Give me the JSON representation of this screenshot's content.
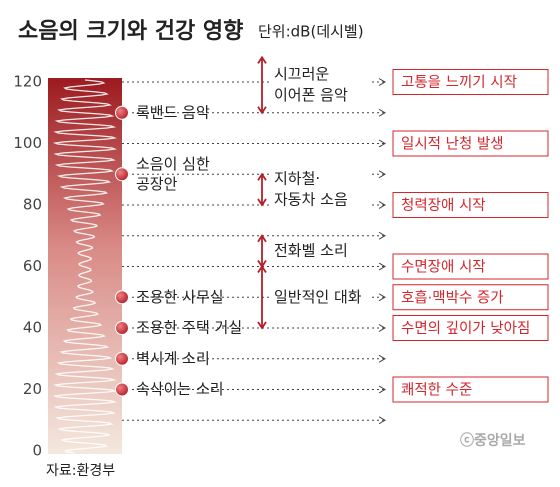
{
  "chart_data": {
    "type": "scale",
    "title": "소음의 크기와 건강 영향",
    "subtitle": "단위:dB(데시벨)",
    "source": "자료:환경부",
    "credit": "ⓒ중앙일보",
    "ylim": [
      0,
      120
    ],
    "yticks": [
      0,
      20,
      40,
      60,
      80,
      100,
      120
    ],
    "minor_yticks": [
      10,
      30,
      50,
      70,
      90,
      110
    ],
    "colors": {
      "top": "#9c1a1f",
      "middle": "#d98a86",
      "bottom": "#f4e8de",
      "dot": "#b3202a",
      "effect": "#d3272c"
    },
    "sources": [
      {
        "lines": [
          "록밴드 음악"
        ],
        "value": 110
      },
      {
        "lines": [
          "소음이 심한",
          "공장안"
        ],
        "value": 90
      },
      {
        "lines": [
          "조용한 사무실"
        ],
        "value": 50
      },
      {
        "lines": [
          "조용한 주택 거실"
        ],
        "value": 40
      },
      {
        "lines": [
          "벽시계 소리"
        ],
        "value": 30
      },
      {
        "lines": [
          "속삭이는 소리"
        ],
        "value": 20
      }
    ],
    "ranges": [
      {
        "lines": [
          "시끄러운",
          "이어폰 음악"
        ],
        "from": 110,
        "to": 128
      },
      {
        "lines": [
          "지하철·",
          "자동차 소음"
        ],
        "from": 80,
        "to": 90
      },
      {
        "lines": [
          "전화벨 소리"
        ],
        "from": 60,
        "to": 70
      },
      {
        "lines": [
          "일반적인 대화"
        ],
        "from": 40,
        "to": 60
      }
    ],
    "effects": [
      {
        "label": "고통을 느끼기 시작",
        "value": 120
      },
      {
        "label": "일시적 난청 발생",
        "value": 100
      },
      {
        "label": "청력장애 시작",
        "value": 80
      },
      {
        "label": "수면장애 시작",
        "value": 60
      },
      {
        "label": "호흡·맥박수 증가",
        "value": 50
      },
      {
        "label": "수면의 깊이가 낮아짐",
        "value": 40
      },
      {
        "label": "쾌적한 수준",
        "value": 20
      }
    ]
  }
}
